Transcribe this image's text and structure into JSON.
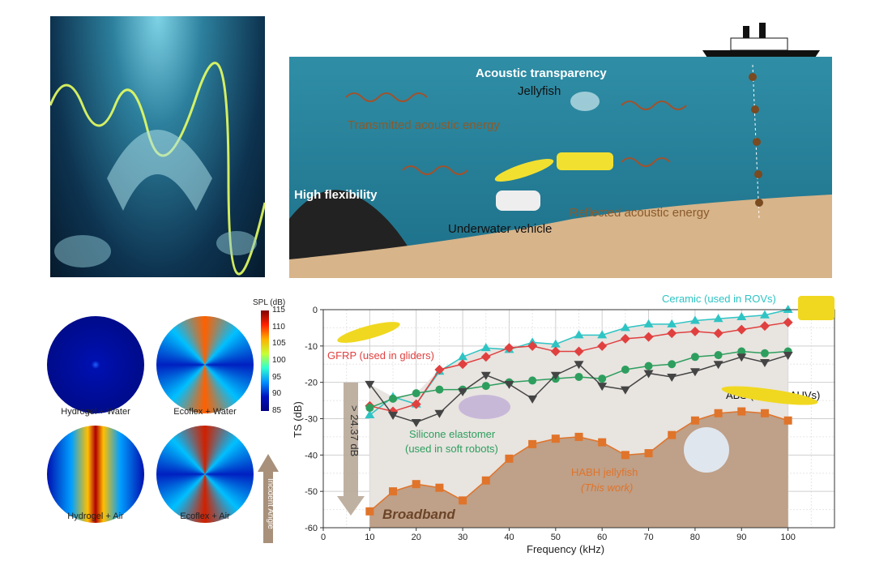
{
  "illustration_top": {
    "title": "Acoustic transparency",
    "jellyfish": "Jellyfish",
    "transmitted": "Transmitted acoustic energy",
    "flexibility": "High flexibility",
    "vehicle": "Underwater vehicle",
    "reflected": "Reflected acoustic energy"
  },
  "simulation": {
    "panels": [
      "Hydrogel + Water",
      "Ecoflex + Water",
      "Hydrogel + Air",
      "Ecoflex + Air"
    ],
    "colorbar_title": "SPL (dB)",
    "colorbar_ticks": [
      "115",
      "110",
      "105",
      "100",
      "95",
      "90",
      "85"
    ],
    "arrow_label": "Incident Angle"
  },
  "chart_data": {
    "type": "line",
    "xlabel": "Frequency (kHz)",
    "ylabel": "TS (dB)",
    "xlim": [
      0,
      110
    ],
    "ylim": [
      -60,
      0
    ],
    "xticks": [
      0,
      10,
      20,
      30,
      40,
      50,
      60,
      70,
      80,
      90,
      100
    ],
    "yticks": [
      0,
      -10,
      -20,
      -30,
      -40,
      -50,
      -60
    ],
    "grid": true,
    "x": [
      10,
      15,
      20,
      25,
      30,
      35,
      40,
      45,
      50,
      55,
      60,
      65,
      70,
      75,
      80,
      85,
      90,
      95,
      100
    ],
    "series": [
      {
        "name": "Ceramic (used in ROVs)",
        "color": "#2ec4c4",
        "marker": "triangle-up",
        "values": [
          -29,
          -24,
          -26,
          -17,
          -13,
          -10.5,
          -11,
          -9,
          -9.5,
          -7,
          -7,
          -5,
          -4,
          -4,
          -3,
          -2.5,
          -2,
          -1.5,
          0
        ]
      },
      {
        "name": "GFRP (used in gliders)",
        "color": "#e0403f",
        "marker": "diamond",
        "values": [
          -26.5,
          -28,
          -26,
          -16.5,
          -15,
          -13,
          -10.5,
          -10,
          -11.5,
          -11.5,
          -10,
          -8,
          -7.5,
          -6.5,
          -6,
          -6.5,
          -5.5,
          -4.5,
          -3.5
        ]
      },
      {
        "name": "Silicone elastomer (used in soft robots)",
        "color": "#2e9e5e",
        "marker": "circle",
        "values": [
          -27,
          -24.5,
          -23,
          -22,
          -22,
          -21,
          -20,
          -19.5,
          -19,
          -18.5,
          -19,
          -16.5,
          -15.5,
          -15,
          -13,
          -12.5,
          -11.5,
          -12,
          -11.5
        ]
      },
      {
        "name": "ABS (used in AUVs)",
        "color": "#444444",
        "marker": "triangle-down",
        "values": [
          -20.5,
          -29,
          -31,
          -28.5,
          -22.5,
          -18,
          -20.5,
          -24.5,
          -18,
          -15,
          -21,
          -22,
          -17.5,
          -18.5,
          -17,
          -15,
          -13,
          -14.5,
          -12.5
        ]
      },
      {
        "name": "HABH jellyfish",
        "color": "#e0742a",
        "marker": "square",
        "values": [
          -55.5,
          -50,
          -48,
          -49,
          -52.5,
          -47,
          -41,
          -37,
          -35.5,
          -35,
          -36.5,
          -40,
          -39.5,
          -34.5,
          -30.5,
          -28.5,
          -28,
          -28.5,
          -30.5
        ]
      }
    ],
    "labels": {
      "ceramic": "Ceramic (used in ROVs)",
      "gfrp": "GFRP (used in gliders)",
      "silicone_1": "Silicone elastomer",
      "silicone_2": "(used in soft robots)",
      "abs": "ABS (used in AUVs)",
      "habh_1": "HABH jellyfish",
      "habh_2": "(This work)",
      "reduction": "> 24.37 dB",
      "broadband": "Broadband"
    }
  }
}
